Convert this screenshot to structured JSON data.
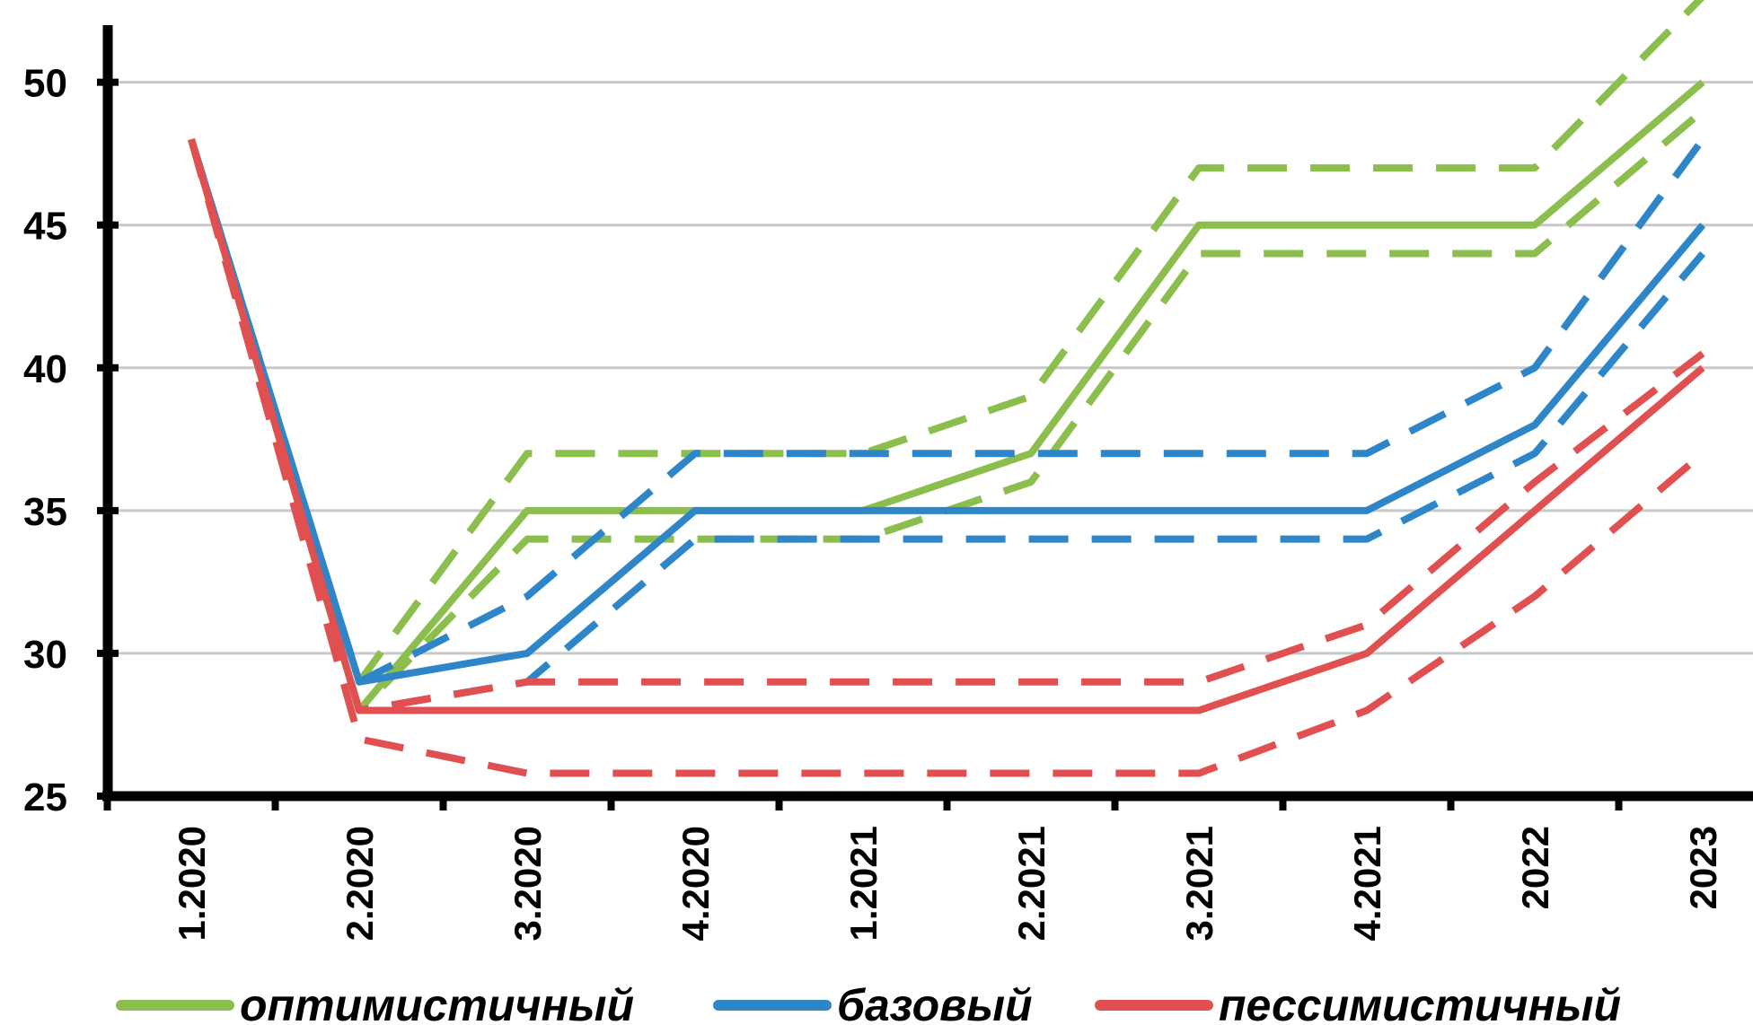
{
  "chart_data": {
    "type": "line",
    "categories": [
      "1.2020",
      "2.2020",
      "3.2020",
      "4.2020",
      "1.2021",
      "2.2021",
      "3.2021",
      "4.2021",
      "2022",
      "2023"
    ],
    "y_ticks": [
      "25",
      "30",
      "35",
      "40",
      "45",
      "50"
    ],
    "ylim": [
      25,
      52
    ],
    "grid": true,
    "legend_position": "bottom",
    "series": [
      {
        "key": "opt",
        "name": "оптимистичный",
        "color": "#8BBE4C",
        "values": [
          48,
          28,
          35,
          35,
          35,
          37,
          45,
          45,
          45,
          50
        ],
        "upper": [
          48,
          29,
          37,
          37,
          37,
          39,
          47,
          47,
          47,
          53
        ],
        "lower": [
          48,
          28,
          34,
          34,
          34,
          36,
          44,
          44,
          44,
          49
        ]
      },
      {
        "key": "base",
        "name": "базовый",
        "color": "#2E86C9",
        "values": [
          48,
          29,
          30,
          35,
          35,
          35,
          35,
          35,
          38,
          45
        ],
        "upper": [
          48,
          29,
          32,
          37,
          37,
          37,
          37,
          37,
          40,
          48
        ],
        "lower": [
          48,
          28,
          29,
          34,
          34,
          34,
          34,
          34,
          37,
          44
        ]
      },
      {
        "key": "pess",
        "name": "пессимистичный",
        "color": "#E05050",
        "values": [
          48,
          28,
          28,
          28,
          28,
          28,
          28,
          30,
          35,
          40
        ],
        "upper": [
          48,
          28,
          29,
          29,
          29,
          29,
          29,
          31,
          36,
          40.5
        ],
        "lower": [
          48,
          27,
          25.8,
          25.8,
          25.8,
          25.8,
          25.8,
          28,
          32,
          37
        ]
      }
    ]
  }
}
